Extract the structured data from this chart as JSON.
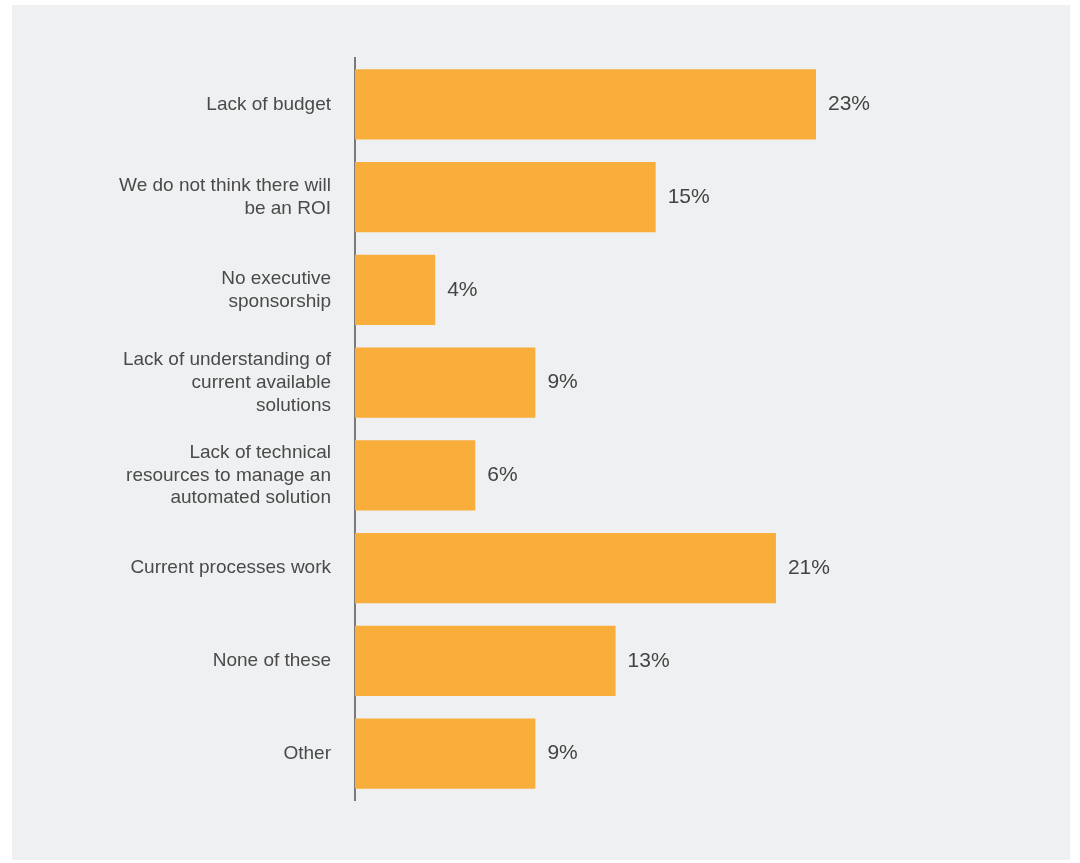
{
  "chart_data": {
    "type": "bar",
    "orientation": "horizontal",
    "tick_labels": "y",
    "categories": [
      "Lack of budget",
      "We do not think there will be an ROI",
      "No executive sponsorship",
      "Lack of understanding of current available solutions",
      "Lack of technical resources to manage an automated solution",
      "Current processes work",
      "None of these",
      "Other"
    ],
    "values": [
      23,
      15,
      4,
      9,
      6,
      21,
      13,
      9
    ],
    "value_labels": [
      "23%",
      "15%",
      "4%",
      "9%",
      "6%",
      "21%",
      "13%",
      "9%"
    ],
    "color": "#f9ae3b",
    "legend": false
  }
}
